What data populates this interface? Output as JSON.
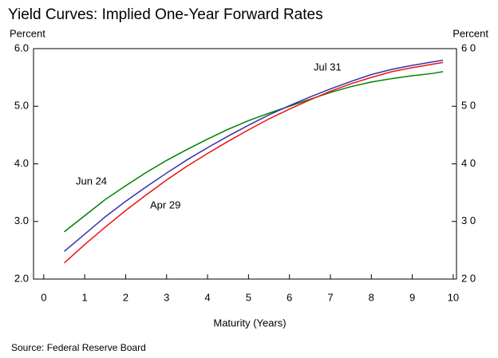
{
  "chart_data": {
    "type": "line",
    "title": "Yield Curves: Implied One-Year Forward Rates",
    "ylabel": "Percent",
    "y2label": "Percent",
    "xlabel": "Maturity (Years)",
    "source": "Source: Federal Reserve Board",
    "x": [
      0.5,
      1,
      1.5,
      2,
      2.5,
      3,
      3.5,
      4,
      4.5,
      5,
      5.5,
      6,
      6.5,
      7,
      7.5,
      8,
      8.5,
      9,
      9.5,
      9.75
    ],
    "series": [
      {
        "name": "Jun 24",
        "color": "#008000",
        "values": [
          2.82,
          3.1,
          3.38,
          3.62,
          3.85,
          4.06,
          4.25,
          4.43,
          4.6,
          4.75,
          4.88,
          5.0,
          5.12,
          5.24,
          5.34,
          5.42,
          5.48,
          5.53,
          5.57,
          5.6
        ]
      },
      {
        "name": "Jul 31",
        "color": "#3333aa",
        "values": [
          2.48,
          2.78,
          3.08,
          3.35,
          3.6,
          3.84,
          4.07,
          4.28,
          4.48,
          4.67,
          4.85,
          5.01,
          5.16,
          5.3,
          5.43,
          5.55,
          5.64,
          5.71,
          5.77,
          5.8
        ]
      },
      {
        "name": "Apr 29",
        "color": "#ee1111",
        "values": [
          2.28,
          2.6,
          2.9,
          3.19,
          3.46,
          3.72,
          3.96,
          4.18,
          4.39,
          4.59,
          4.78,
          4.95,
          5.11,
          5.26,
          5.39,
          5.5,
          5.6,
          5.67,
          5.73,
          5.76
        ]
      }
    ],
    "xlim": [
      -0.25,
      10.08
    ],
    "xticks": [
      0,
      1,
      2,
      3,
      4,
      5,
      6,
      7,
      8,
      9,
      10
    ],
    "ylim": [
      2,
      6
    ],
    "yticks": [
      {
        "value": 2,
        "label": "2.0"
      },
      {
        "value": 3,
        "label": "3.0"
      },
      {
        "value": 4,
        "label": "4.0"
      },
      {
        "value": 5,
        "label": "5.0"
      },
      {
        "value": 6,
        "label": "6.0"
      }
    ],
    "y2lim": [
      2,
      6
    ],
    "y2ticks": [
      {
        "value": 2,
        "label": "2 0"
      },
      {
        "value": 3,
        "label": "3 0"
      },
      {
        "value": 4,
        "label": "4 0"
      },
      {
        "value": 5,
        "label": "5 0"
      },
      {
        "value": 6,
        "label": "6 0"
      }
    ]
  }
}
